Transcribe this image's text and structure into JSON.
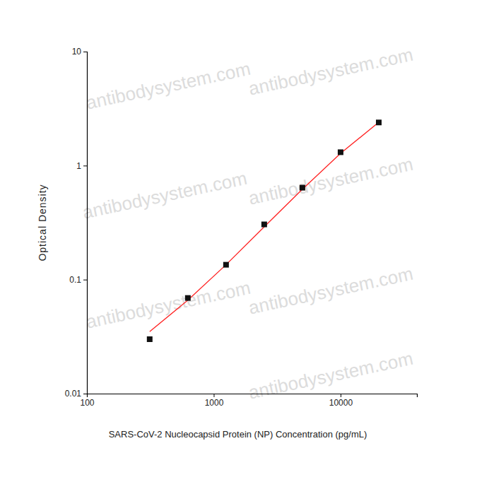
{
  "chart_data": {
    "type": "scatter",
    "x_label": "SARS-CoV-2 Nucleocapsid Protein (NP) Concentration (pg/mL)",
    "y_label": "Optical Density",
    "watermark": "antibodysystem.com",
    "log": true,
    "grid": false,
    "x": [
      312.5,
      625,
      1250,
      2500,
      5000,
      10000,
      20000
    ],
    "series": [
      {
        "type": "scatter",
        "marker": "square",
        "color": "#111111",
        "values": [
          0.03,
          0.069,
          0.135,
          0.305,
          0.64,
          1.31,
          2.39
        ]
      },
      {
        "type": "line",
        "line_style": "solid",
        "color": "#ff2020",
        "values": [
          0.035,
          0.066,
          0.135,
          0.29,
          0.62,
          1.28,
          2.4
        ]
      }
    ],
    "xlim": [
      100,
      40000
    ],
    "xticks": [
      100,
      1000,
      10000
    ],
    "ylim": [
      0.01,
      10
    ],
    "yticks": [
      0.01,
      0.1,
      1,
      10
    ]
  }
}
